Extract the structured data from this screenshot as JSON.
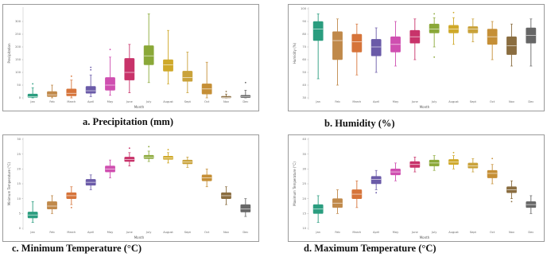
{
  "captions": {
    "a": "a.   Precipitation (mm)",
    "b": "b.   Humidity (%)",
    "c": "c.   Minimum Temperature (°C)",
    "d": "d.   Maximum Temperature (°C)"
  },
  "colors": [
    "#2a9d7f",
    "#c0894a",
    "#d6743a",
    "#6a5aa8",
    "#cf4fb0",
    "#c8336a",
    "#8aa838",
    "#cfa92a",
    "#c9a23a",
    "#c58f36",
    "#8a6d40",
    "#666666"
  ],
  "chart_data": [
    {
      "type": "box",
      "title": "",
      "xlabel": "Month",
      "ylabel": "Precipitation",
      "categories": [
        "Jan",
        "Feb",
        "March",
        "April",
        "May",
        "June",
        "July",
        "August",
        "Sept",
        "Oct",
        "Nov",
        "Dec"
      ],
      "ylim": [
        0,
        350
      ],
      "yticks": [
        "0",
        "50",
        "100",
        "150",
        "200",
        "250",
        "300"
      ],
      "boxes": [
        {
          "min": 0,
          "q1": 2,
          "median": 5,
          "q3": 15,
          "max": 40,
          "outliers": [
            55
          ]
        },
        {
          "min": 0,
          "q1": 5,
          "median": 12,
          "q3": 25,
          "max": 50,
          "outliers": []
        },
        {
          "min": 0,
          "q1": 8,
          "median": 18,
          "q3": 35,
          "max": 70,
          "outliers": [
            85
          ]
        },
        {
          "min": 5,
          "q1": 18,
          "median": 28,
          "q3": 45,
          "max": 90,
          "outliers": [
            110,
            120
          ]
        },
        {
          "min": 10,
          "q1": 30,
          "median": 50,
          "q3": 80,
          "max": 160,
          "outliers": [
            190
          ]
        },
        {
          "min": 20,
          "q1": 70,
          "median": 100,
          "q3": 155,
          "max": 210,
          "outliers": []
        },
        {
          "min": 60,
          "q1": 130,
          "median": 165,
          "q3": 205,
          "max": 330,
          "outliers": []
        },
        {
          "min": 55,
          "q1": 105,
          "median": 130,
          "q3": 150,
          "max": 265,
          "outliers": []
        },
        {
          "min": 20,
          "q1": 65,
          "median": 80,
          "q3": 105,
          "max": 180,
          "outliers": []
        },
        {
          "min": 0,
          "q1": 15,
          "median": 35,
          "q3": 55,
          "max": 140,
          "outliers": []
        },
        {
          "min": 0,
          "q1": 0,
          "median": 2,
          "q3": 6,
          "max": 15,
          "outliers": [
            25
          ]
        },
        {
          "min": 0,
          "q1": 1,
          "median": 4,
          "q3": 10,
          "max": 30,
          "outliers": [
            60
          ]
        }
      ]
    },
    {
      "type": "box",
      "title": "",
      "xlabel": "Month",
      "ylabel": "Humidity (%)",
      "categories": [
        "Jan",
        "Feb",
        "March",
        "April",
        "May",
        "June",
        "July",
        "August",
        "Sept",
        "Oct",
        "Nov",
        "Dec"
      ],
      "ylim": [
        30,
        100
      ],
      "yticks": [
        "30",
        "40",
        "50",
        "60",
        "70",
        "80",
        "90",
        "100"
      ],
      "boxes": [
        {
          "min": 45,
          "q1": 75,
          "median": 84,
          "q3": 90,
          "max": 96,
          "outliers": []
        },
        {
          "min": 40,
          "q1": 60,
          "median": 75,
          "q3": 82,
          "max": 92,
          "outliers": []
        },
        {
          "min": 48,
          "q1": 66,
          "median": 74,
          "q3": 80,
          "max": 88,
          "outliers": []
        },
        {
          "min": 50,
          "q1": 63,
          "median": 70,
          "q3": 76,
          "max": 85,
          "outliers": []
        },
        {
          "min": 55,
          "q1": 66,
          "median": 72,
          "q3": 78,
          "max": 90,
          "outliers": []
        },
        {
          "min": 60,
          "q1": 73,
          "median": 78,
          "q3": 83,
          "max": 92,
          "outliers": []
        },
        {
          "min": 70,
          "q1": 81,
          "median": 84,
          "q3": 88,
          "max": 93,
          "outliers": [
            62,
            96
          ]
        },
        {
          "min": 72,
          "q1": 81,
          "median": 84,
          "q3": 87,
          "max": 93,
          "outliers": [
            97
          ]
        },
        {
          "min": 74,
          "q1": 81,
          "median": 84,
          "q3": 86,
          "max": 92,
          "outliers": []
        },
        {
          "min": 60,
          "q1": 72,
          "median": 78,
          "q3": 84,
          "max": 90,
          "outliers": []
        },
        {
          "min": 55,
          "q1": 64,
          "median": 71,
          "q3": 78,
          "max": 88,
          "outliers": []
        },
        {
          "min": 55,
          "q1": 73,
          "median": 79,
          "q3": 85,
          "max": 92,
          "outliers": []
        }
      ]
    },
    {
      "type": "box",
      "title": "",
      "xlabel": "Month",
      "ylabel": "Minimum Temperature (°C)",
      "categories": [
        "Jan",
        "Feb",
        "March",
        "April",
        "May",
        "June",
        "July",
        "August",
        "Sept",
        "Oct",
        "Nov",
        "Dec"
      ],
      "ylim": [
        0,
        30
      ],
      "yticks": [
        "0",
        "5",
        "10",
        "15",
        "20",
        "25",
        "30"
      ],
      "boxes": [
        {
          "min": 2,
          "q1": 3.5,
          "median": 4.5,
          "q3": 5.5,
          "max": 9,
          "outliers": []
        },
        {
          "min": 5,
          "q1": 6.5,
          "median": 7.5,
          "q3": 9,
          "max": 11,
          "outliers": []
        },
        {
          "min": 8,
          "q1": 10,
          "median": 11,
          "q3": 12,
          "max": 14,
          "outliers": [
            7
          ]
        },
        {
          "min": 13,
          "q1": 14.5,
          "median": 15.5,
          "q3": 16.5,
          "max": 18,
          "outliers": []
        },
        {
          "min": 17,
          "q1": 19,
          "median": 20,
          "q3": 21,
          "max": 23,
          "outliers": []
        },
        {
          "min": 21,
          "q1": 22.5,
          "median": 23.2,
          "q3": 24,
          "max": 25.5,
          "outliers": [
            27
          ]
        },
        {
          "min": 22.5,
          "q1": 23.5,
          "median": 24,
          "q3": 24.6,
          "max": 26,
          "outliers": [
            27.5
          ]
        },
        {
          "min": 22,
          "q1": 23.2,
          "median": 23.7,
          "q3": 24.3,
          "max": 25.5,
          "outliers": [
            26.5
          ]
        },
        {
          "min": 20.5,
          "q1": 21.7,
          "median": 22.3,
          "q3": 23,
          "max": 24,
          "outliers": []
        },
        {
          "min": 14,
          "q1": 16,
          "median": 17,
          "q3": 18,
          "max": 20,
          "outliers": []
        },
        {
          "min": 8,
          "q1": 10,
          "median": 11,
          "q3": 12,
          "max": 14,
          "outliers": []
        },
        {
          "min": 4,
          "q1": 5.5,
          "median": 6.5,
          "q3": 8,
          "max": 10,
          "outliers": []
        }
      ]
    },
    {
      "type": "box",
      "title": "",
      "xlabel": "Month",
      "ylabel": "Maximum Temperature (°C)",
      "categories": [
        "Jan",
        "Feb",
        "March",
        "April",
        "May",
        "June",
        "July",
        "August",
        "Sept",
        "Oct",
        "Nov",
        "Dec"
      ],
      "ylim": [
        10,
        40
      ],
      "yticks": [
        "10",
        "15",
        "20",
        "25",
        "30",
        "35",
        "40"
      ],
      "boxes": [
        {
          "min": 12,
          "q1": 15,
          "median": 16.5,
          "q3": 18,
          "max": 21,
          "outliers": []
        },
        {
          "min": 15,
          "q1": 17,
          "median": 18.5,
          "q3": 20,
          "max": 23,
          "outliers": []
        },
        {
          "min": 17,
          "q1": 20,
          "median": 21.5,
          "q3": 23,
          "max": 26,
          "outliers": []
        },
        {
          "min": 23,
          "q1": 25,
          "median": 26.5,
          "q3": 27.5,
          "max": 29.5,
          "outliers": [
            22
          ]
        },
        {
          "min": 26,
          "q1": 28,
          "median": 29,
          "q3": 30,
          "max": 32,
          "outliers": []
        },
        {
          "min": 29,
          "q1": 30.5,
          "median": 31.5,
          "q3": 32.5,
          "max": 34,
          "outliers": []
        },
        {
          "min": 29.5,
          "q1": 31,
          "median": 32,
          "q3": 33,
          "max": 34.5,
          "outliers": []
        },
        {
          "min": 30,
          "q1": 31.5,
          "median": 32.3,
          "q3": 33.2,
          "max": 34.5,
          "outliers": [
            35.5
          ]
        },
        {
          "min": 29,
          "q1": 30.3,
          "median": 31,
          "q3": 32,
          "max": 33.5,
          "outliers": []
        },
        {
          "min": 25,
          "q1": 27,
          "median": 28.5,
          "q3": 29.5,
          "max": 31.5,
          "outliers": [
            33.5
          ]
        },
        {
          "min": 20,
          "q1": 22,
          "median": 23,
          "q3": 24,
          "max": 26,
          "outliers": [
            19
          ]
        },
        {
          "min": 15,
          "q1": 17,
          "median": 18,
          "q3": 19,
          "max": 21,
          "outliers": []
        }
      ]
    }
  ]
}
